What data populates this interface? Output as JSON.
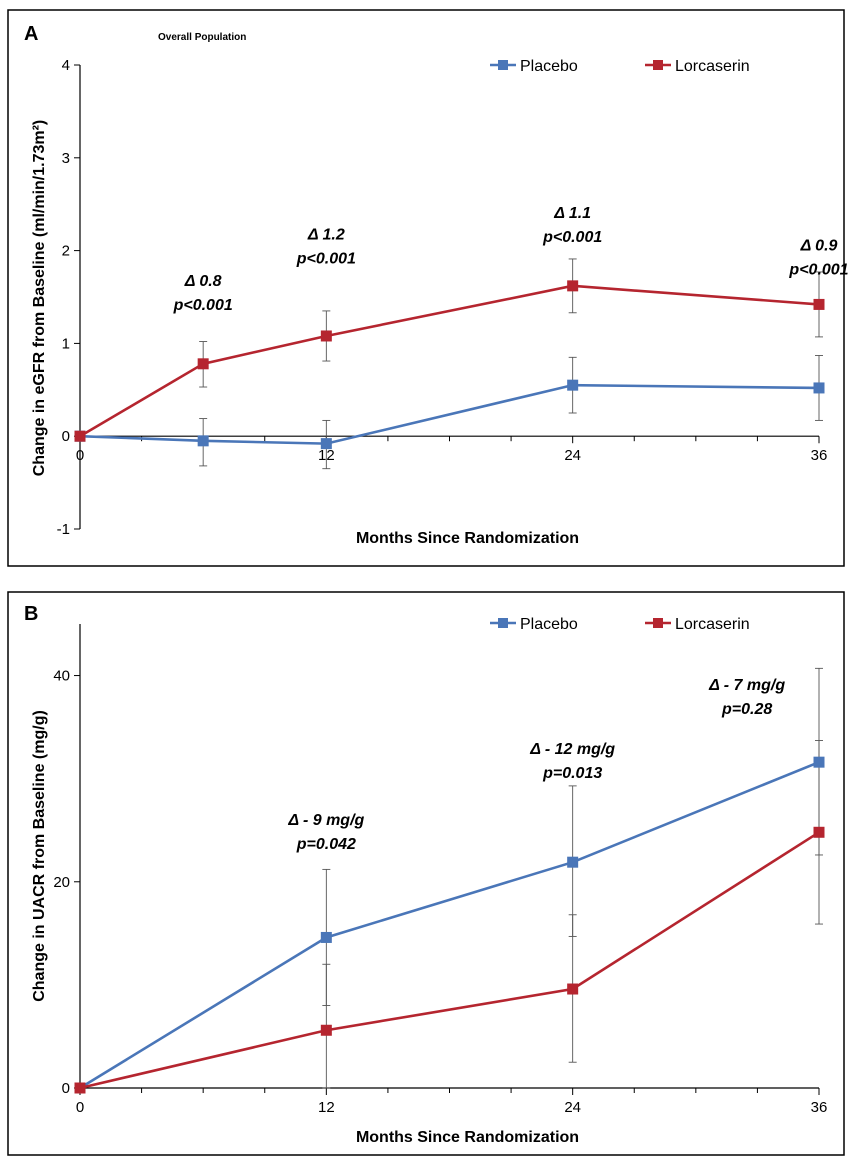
{
  "chart_data": [
    {
      "type": "line",
      "panel": "A",
      "title": "Overall Population",
      "xlabel": "Months Since Randomization",
      "ylabel": "Change in eGFR from Baseline (ml/min/1.73m²)",
      "xlim": [
        0,
        36
      ],
      "ylim": [
        -1,
        4
      ],
      "xticks": [
        0,
        12,
        24,
        36
      ],
      "yticks": [
        -1,
        0,
        1,
        2,
        3,
        4
      ],
      "grid": false,
      "legend_position": "top-right",
      "series": [
        {
          "name": "Placebo",
          "color": "#4a76b8",
          "x": [
            0,
            6,
            12,
            24,
            36
          ],
          "y": [
            0,
            -0.05,
            -0.08,
            0.55,
            0.52
          ],
          "err_low": [
            0,
            -0.32,
            -0.35,
            0.25,
            0.17
          ],
          "err_high": [
            0,
            0.19,
            0.17,
            0.85,
            0.87
          ]
        },
        {
          "name": "Lorcaserin",
          "color": "#b5252f",
          "x": [
            0,
            6,
            12,
            24,
            36
          ],
          "y": [
            0,
            0.78,
            1.08,
            1.62,
            1.42
          ],
          "err_low": [
            0,
            0.53,
            0.81,
            1.33,
            1.07
          ],
          "err_high": [
            0,
            1.02,
            1.35,
            1.91,
            1.77
          ]
        }
      ],
      "annotations": [
        {
          "x": 6,
          "y": 1.62,
          "lines": [
            "Δ 0.8",
            "p<0.001"
          ]
        },
        {
          "x": 12,
          "y": 2.12,
          "lines": [
            "Δ 1.2",
            "p<0.001"
          ]
        },
        {
          "x": 24,
          "y": 2.35,
          "lines": [
            "Δ 1.1",
            "p<0.001"
          ]
        },
        {
          "x": 36,
          "y": 2.0,
          "lines": [
            "Δ 0.9",
            "p<0.001"
          ]
        }
      ]
    },
    {
      "type": "line",
      "panel": "B",
      "title": "",
      "xlabel": "Months Since Randomization",
      "ylabel": "Change in UACR from Baseline (mg/g)",
      "xlim": [
        0,
        36
      ],
      "ylim": [
        0,
        45
      ],
      "xticks": [
        0,
        12,
        24,
        36
      ],
      "yticks": [
        0,
        20,
        40
      ],
      "grid": false,
      "legend_position": "top-right",
      "series": [
        {
          "name": "Placebo",
          "color": "#4a76b8",
          "x": [
            0,
            12,
            24,
            36
          ],
          "y": [
            0,
            14.6,
            21.9,
            31.6
          ],
          "err_low": [
            0,
            8.0,
            14.7,
            22.6
          ],
          "err_high": [
            0,
            21.2,
            29.3,
            40.7
          ]
        },
        {
          "name": "Lorcaserin",
          "color": "#b5252f",
          "x": [
            0,
            12,
            24,
            36
          ],
          "y": [
            0,
            5.6,
            9.6,
            24.8
          ],
          "err_low": [
            0,
            0,
            2.5,
            15.9
          ],
          "err_high": [
            0,
            12.0,
            16.8,
            33.7
          ]
        }
      ],
      "annotations": [
        {
          "x": 12,
          "y": 25.5,
          "lines": [
            "Δ - 9 mg/g",
            "p=0.042"
          ]
        },
        {
          "x": 24,
          "y": 32.4,
          "lines": [
            "Δ - 12 mg/g",
            "p=0.013"
          ]
        },
        {
          "x": 32.5,
          "y": 38.6,
          "lines": [
            "Δ - 7 mg/g",
            "p=0.28"
          ]
        }
      ]
    }
  ]
}
